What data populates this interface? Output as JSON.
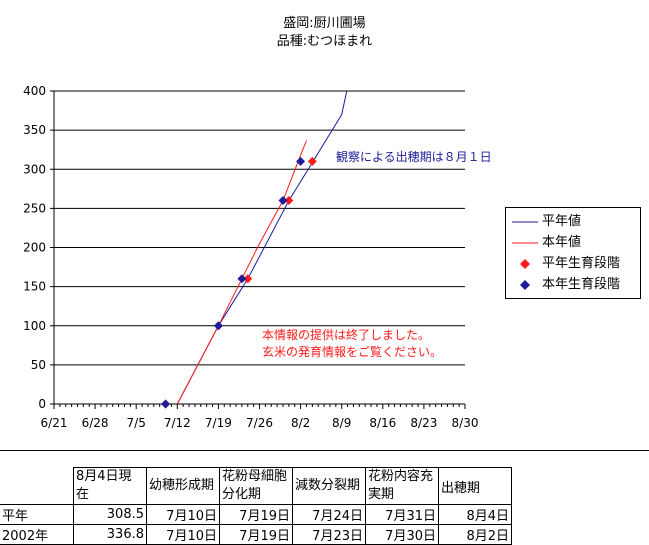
{
  "header": {
    "line1": "盛岡:厨川圃場",
    "line2": "品種:むつほまれ"
  },
  "chart_data": {
    "type": "line",
    "title": "盛岡:厨川圃場 品種:むつほまれ",
    "x_tick_labels": [
      "6/21",
      "6/28",
      "7/5",
      "7/12",
      "7/19",
      "7/26",
      "8/2",
      "8/9",
      "8/16",
      "8/23",
      "8/30"
    ],
    "x_range": [
      "2002-06-21",
      "2002-08-30"
    ],
    "ylim": [
      0,
      400
    ],
    "y_ticks": [
      0,
      50,
      100,
      150,
      200,
      250,
      300,
      350,
      400
    ],
    "grid": "horizontal",
    "legend_position": "right",
    "series": [
      {
        "name": "平年値",
        "type": "line",
        "color": "#1c1c9c",
        "x": [
          "2002-07-12",
          "2002-07-19",
          "2002-07-24",
          "2002-07-31",
          "2002-08-04",
          "2002-08-09",
          "2002-08-10"
        ],
        "y": [
          0,
          100,
          160,
          260,
          308.5,
          370,
          405
        ]
      },
      {
        "name": "本年値",
        "type": "line",
        "color": "#ff1a1a",
        "x": [
          "2002-07-12",
          "2002-07-19",
          "2002-07-23",
          "2002-07-26",
          "2002-07-30",
          "2002-08-02",
          "2002-08-03"
        ],
        "y": [
          0,
          100,
          160,
          205,
          260,
          318,
          336.8
        ]
      },
      {
        "name": "平年生育段階",
        "type": "scatter",
        "marker": "diamond",
        "color": "#ff1a1a",
        "x": [
          "2002-07-10",
          "2002-07-19",
          "2002-07-24",
          "2002-07-31",
          "2002-08-04"
        ],
        "y": [
          0,
          100,
          160,
          260,
          310
        ]
      },
      {
        "name": "本年生育段階",
        "type": "scatter",
        "marker": "diamond",
        "color": "#1c1c9c",
        "x": [
          "2002-07-10",
          "2002-07-19",
          "2002-07-23",
          "2002-07-30",
          "2002-08-02"
        ],
        "y": [
          0,
          100,
          160,
          260,
          310
        ]
      }
    ],
    "annotations": [
      {
        "text": "観察による出穂期は８月１日",
        "color": "#1c1c9c"
      },
      {
        "text": "本情報の提供は終了しました。",
        "color": "#ff1a1a"
      },
      {
        "text": "玄米の発育情報をご覧ください。",
        "color": "#ff1a1a"
      }
    ]
  },
  "table": {
    "headers": [
      "8月4日現在",
      "幼穂形成期",
      "花粉母細胞分化期",
      "減数分裂期",
      "花粉内容充実期",
      "出穂期"
    ],
    "rows": [
      {
        "label": "平年",
        "cells": [
          "308.5",
          "7月10日",
          "7月19日",
          "7月24日",
          "7月31日",
          "8月4日"
        ]
      },
      {
        "label": "2002年",
        "cells": [
          "336.8",
          "7月10日",
          "7月19日",
          "7月23日",
          "7月30日",
          "8月2日"
        ]
      }
    ]
  }
}
